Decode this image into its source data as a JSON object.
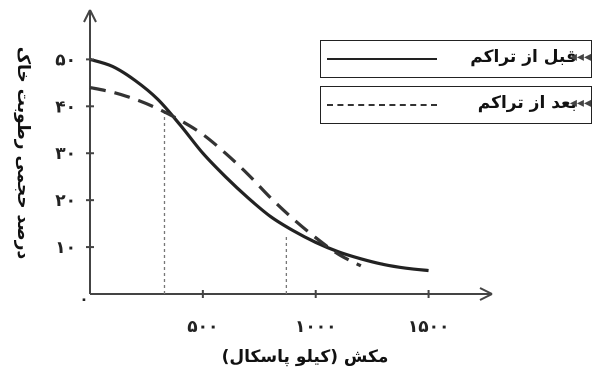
{
  "chart_data": {
    "type": "line",
    "xlabel": "مکش (کیلو پاسکال)",
    "ylabel": "درصد حجمی رطوبت خاک",
    "xlim": [
      0,
      1750
    ],
    "ylim": [
      0,
      52
    ],
    "x_ticks": [
      {
        "value": 500,
        "label": "۵۰۰"
      },
      {
        "value": 1000,
        "label": "۱۰۰۰"
      },
      {
        "value": 1500,
        "label": "۱۵۰۰"
      }
    ],
    "y_ticks": [
      {
        "value": 10,
        "label": "۱۰"
      },
      {
        "value": 20,
        "label": "۲۰"
      },
      {
        "value": 30,
        "label": "۳۰"
      },
      {
        "value": 40,
        "label": "۴۰"
      },
      {
        "value": 50,
        "label": "۵۰"
      }
    ],
    "origin_label": "۰",
    "legend_position": "top-right",
    "series": [
      {
        "name": "قبل از تراکم",
        "style": "solid",
        "color": "#222222",
        "x": [
          0,
          100,
          200,
          300,
          400,
          500,
          600,
          700,
          800,
          900,
          1000,
          1100,
          1200,
          1300,
          1400,
          1500
        ],
        "y": [
          50,
          48.5,
          45.5,
          41.5,
          36,
          30,
          25,
          20.5,
          16.5,
          13.5,
          11,
          9,
          7.5,
          6.3,
          5.5,
          5
        ]
      },
      {
        "name": "بعد از تراکم",
        "style": "dashed",
        "color": "#333333",
        "x": [
          0,
          100,
          200,
          300,
          400,
          500,
          600,
          700,
          800,
          900,
          1000,
          1100,
          1200
        ],
        "y": [
          44,
          43,
          41.5,
          39.5,
          37,
          34,
          30,
          25.5,
          20.5,
          16,
          12,
          8.5,
          6
        ]
      }
    ],
    "reference_lines": [
      {
        "x": 330,
        "y_to": 39
      },
      {
        "x": 870,
        "y_to": 12.5
      }
    ]
  },
  "legend": {
    "marker": "◂◂◂"
  }
}
